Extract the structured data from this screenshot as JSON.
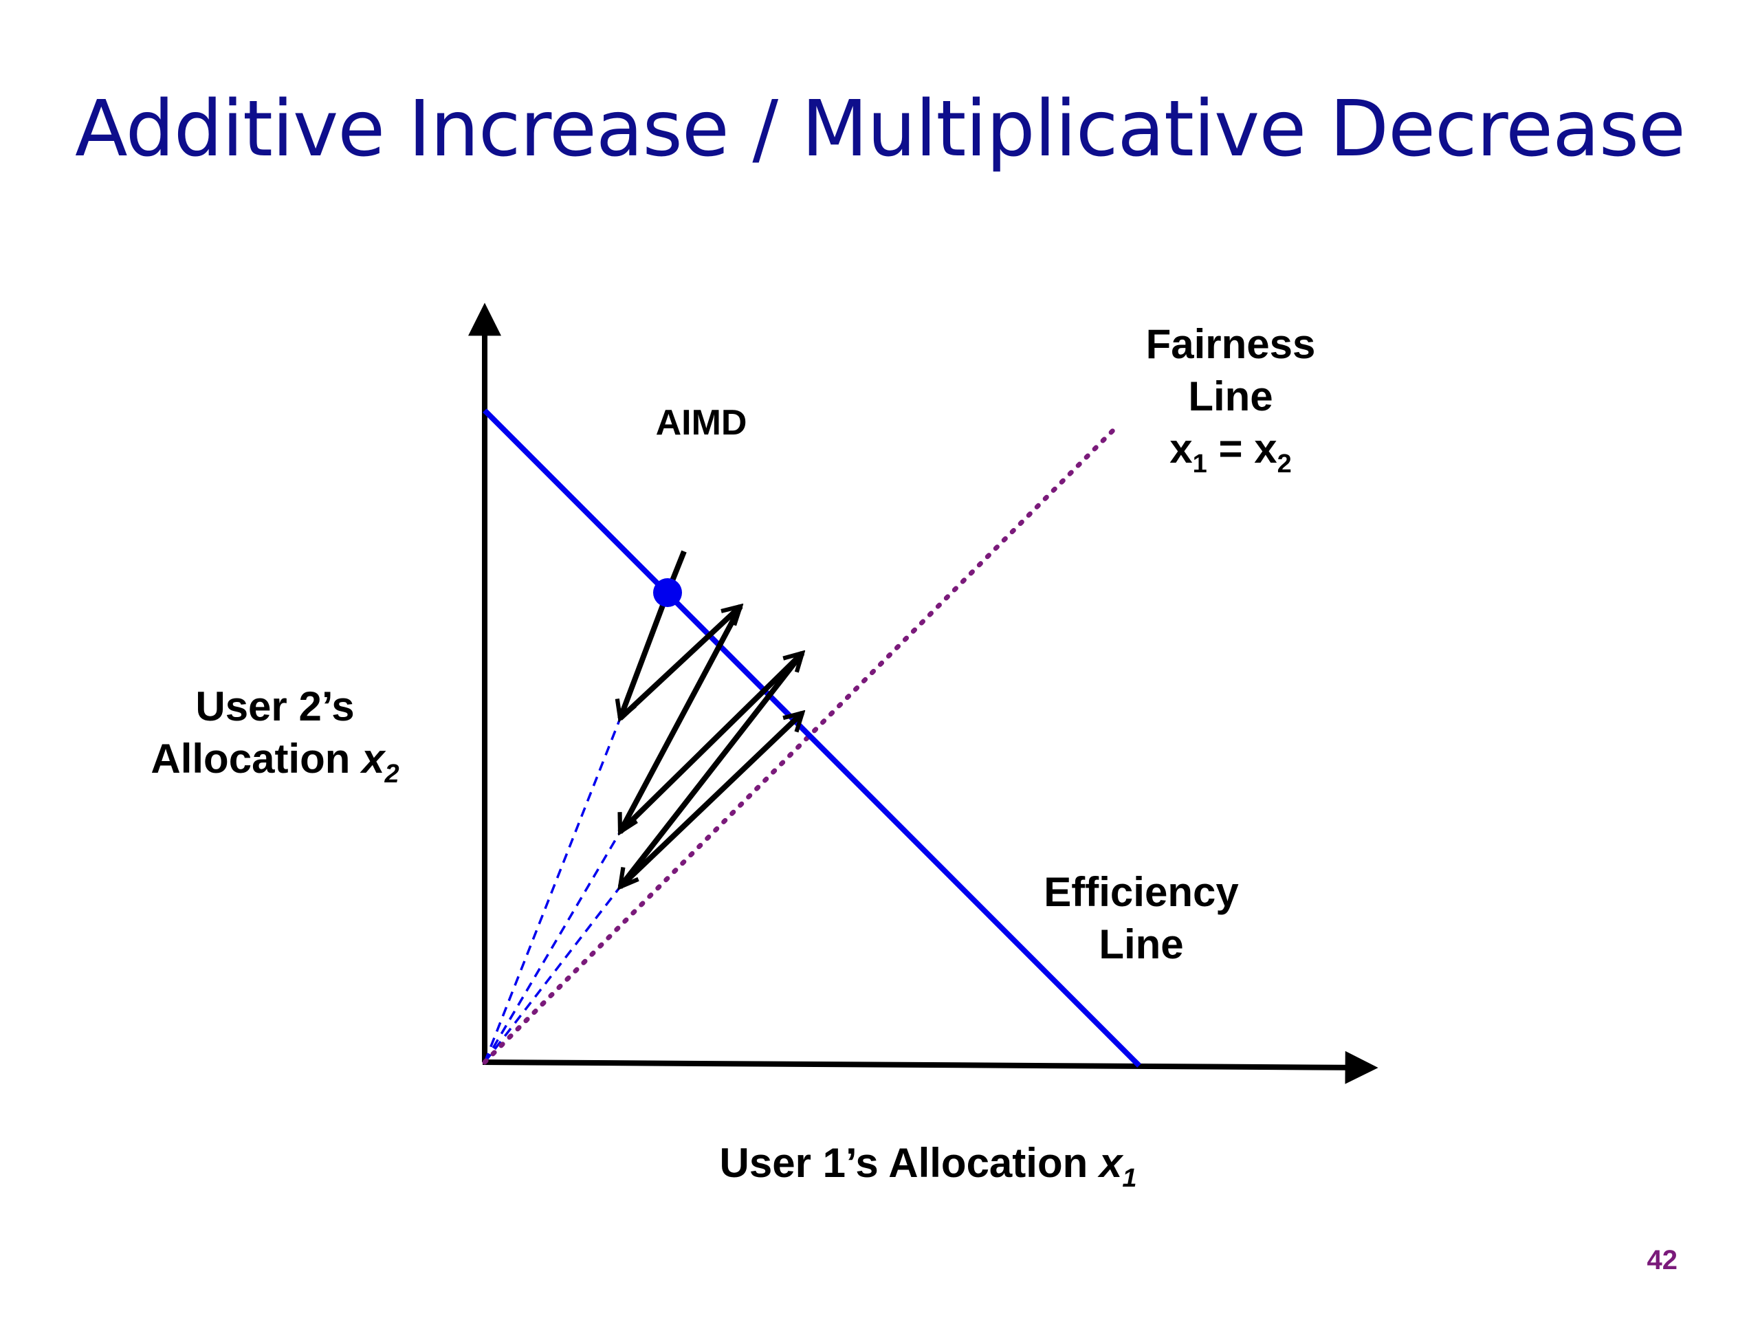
{
  "slide": {
    "title": "Additive Increase / Multiplicative Decrease",
    "page_number": "42"
  },
  "diagram": {
    "aimd_label": "AIMD",
    "fairness_line_title": "Fairness",
    "fairness_line_word": "Line",
    "fairness_eq_lhs": "x",
    "fairness_eq_lhs_sub": "1",
    "fairness_eq_op": " = ",
    "fairness_eq_rhs": "x",
    "fairness_eq_rhs_sub": "2",
    "efficiency_line_title": "Efficiency",
    "efficiency_line_word": "Line",
    "y_axis_line1": "User 2’s",
    "y_axis_line2": "Allocation ",
    "y_axis_var": "x",
    "y_axis_var_sub": "2",
    "x_axis_text": "User 1’s Allocation ",
    "x_axis_var": "x",
    "x_axis_var_sub": "1"
  },
  "colors": {
    "title": "#0e0e8c",
    "efficiency_line": "#0000ee",
    "fairness_line": "#7a1a7a",
    "projection_lines": "#0000ee",
    "arrows": "#000000",
    "page_number": "#7a1a7a"
  }
}
